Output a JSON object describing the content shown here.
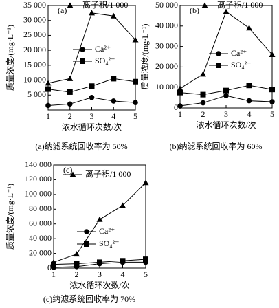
{
  "chart_data": [
    {
      "type": "line",
      "panel_label": "(a)",
      "caption": "(a)纳滤系统回收率为 50%",
      "xlabel": "浓水循环次数/次",
      "ylabel": "质量浓度/(mg·L⁻¹)",
      "x": [
        1,
        2,
        3,
        4,
        5
      ],
      "xlim": [
        1,
        5
      ],
      "xticks": [
        1,
        2,
        3,
        4,
        5
      ],
      "ylim": [
        0,
        35000
      ],
      "yticks": [
        {
          "value": 5000,
          "label": "5 000"
        },
        {
          "value": 10000,
          "label": "10 000"
        },
        {
          "value": 15000,
          "label": "15 000"
        },
        {
          "value": 20000,
          "label": "20 000"
        },
        {
          "value": 25000,
          "label": "25 000"
        },
        {
          "value": 30000,
          "label": "30 000"
        },
        {
          "value": 35000,
          "label": "35 000"
        }
      ],
      "series": [
        {
          "name": "离子积/1 000",
          "color": "#000000",
          "marker": "triangle",
          "values": [
            9000,
            10500,
            32500,
            31500,
            23500
          ]
        },
        {
          "name": "Ca²⁺",
          "color": "#000000",
          "marker": "circle",
          "values": [
            1500,
            2000,
            4200,
            3000,
            2500
          ]
        },
        {
          "name": "SO₄²⁻",
          "color": "#000000",
          "marker": "square",
          "values": [
            7000,
            6000,
            8000,
            10500,
            9500
          ]
        }
      ]
    },
    {
      "type": "line",
      "panel_label": "(b)",
      "caption": "(b)纳滤系统回收率为 60%",
      "xlabel": "浓水循环次数/次",
      "ylabel": "质量浓度/(mg·L⁻¹)",
      "x": [
        1,
        2,
        3,
        4,
        5
      ],
      "xlim": [
        1,
        5
      ],
      "xticks": [
        1,
        2,
        3,
        4,
        5
      ],
      "ylim": [
        0,
        50000
      ],
      "yticks": [
        0,
        {
          "value": 10000,
          "label": "10 000"
        },
        {
          "value": 20000,
          "label": "20 000"
        },
        {
          "value": 30000,
          "label": "30 000"
        },
        {
          "value": 40000,
          "label": "40 000"
        },
        {
          "value": 50000,
          "label": "50 000"
        }
      ],
      "series": [
        {
          "name": "离子积/1 000",
          "color": "#000000",
          "marker": "triangle",
          "values": [
            9500,
            16500,
            47000,
            39000,
            26000
          ]
        },
        {
          "name": "Ca²⁺",
          "color": "#000000",
          "marker": "circle",
          "values": [
            1000,
            2500,
            6000,
            3500,
            3000
          ]
        },
        {
          "name": "SO₄²⁻",
          "color": "#000000",
          "marker": "square",
          "values": [
            7500,
            6500,
            8500,
            11000,
            9000
          ]
        }
      ]
    },
    {
      "type": "line",
      "panel_label": "(c)",
      "caption": "(c)纳滤系统回收率为 70%",
      "xlabel": "浓水循环次数/次",
      "ylabel": "质量浓度/(mg·L⁻¹)",
      "x": [
        1,
        2,
        3,
        4,
        5
      ],
      "xlim": [
        1,
        5
      ],
      "xticks": [
        1,
        2,
        3,
        4,
        5
      ],
      "ylim": [
        0,
        140000
      ],
      "yticks": [
        0,
        {
          "value": 20000,
          "label": "20 000"
        },
        {
          "value": 40000,
          "label": "40 000"
        },
        {
          "value": 60000,
          "label": "60 000"
        },
        {
          "value": 80000,
          "label": "80 000"
        },
        {
          "value": 100000,
          "label": "100 000"
        },
        {
          "value": 120000,
          "label": "120 000"
        },
        {
          "value": 140000,
          "label": "140 000"
        }
      ],
      "series": [
        {
          "name": "离子积/1 000",
          "color": "#000000",
          "marker": "triangle",
          "values": [
            8000,
            19000,
            66000,
            85000,
            116000
          ]
        },
        {
          "name": "Ca²⁺",
          "color": "#000000",
          "marker": "circle",
          "values": [
            1000,
            2000,
            6000,
            8000,
            8000
          ]
        },
        {
          "name": "SO₄²⁻",
          "color": "#000000",
          "marker": "square",
          "values": [
            5000,
            6000,
            8000,
            10000,
            12000
          ]
        }
      ]
    }
  ]
}
